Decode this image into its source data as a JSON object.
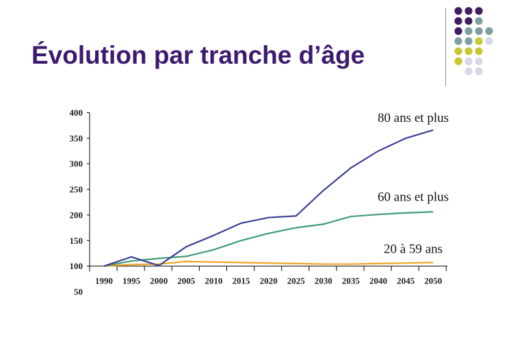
{
  "slide": {
    "title": "Évolution par tranche d’âge"
  },
  "decoration": {
    "dot_colors": {
      "purple": "#3e1e5e",
      "teal": "#7e9ea2",
      "yellow": "#c8c830",
      "lavender": "#d9d6e8"
    },
    "dot_rows": [
      [
        "purple",
        "purple",
        "purple",
        null
      ],
      [
        "purple",
        "purple",
        "teal",
        null
      ],
      [
        "purple",
        "teal",
        "teal",
        "teal"
      ],
      [
        "teal",
        "teal",
        "yellow",
        "lavender"
      ],
      [
        "yellow",
        "yellow",
        "yellow",
        null
      ],
      [
        "yellow",
        "lavender",
        "lavender",
        null
      ],
      [
        null,
        "lavender",
        "lavender",
        null
      ]
    ]
  },
  "chart_data": {
    "type": "line",
    "x": [
      "1990",
      "1995",
      "2000",
      "2005",
      "2010",
      "2015",
      "2020",
      "2025",
      "2030",
      "2035",
      "2040",
      "2045",
      "2050"
    ],
    "ylim": [
      50,
      400
    ],
    "yticks": [
      400,
      350,
      300,
      250,
      200,
      150,
      100,
      50
    ],
    "xlabel": "",
    "ylabel": "",
    "series": [
      {
        "name": "80 ans et plus",
        "color": "#3b3f98",
        "values": [
          100,
          118,
          101,
          138,
          160,
          184,
          195,
          198,
          248,
          292,
          325,
          350,
          366
        ]
      },
      {
        "name": "60 ans et plus",
        "color": "#3f9a75",
        "values": [
          100,
          110,
          115,
          119,
          132,
          150,
          164,
          175,
          182,
          197,
          201,
          204,
          206
        ]
      },
      {
        "name": "20 à 59 ans",
        "color": "#f0a420",
        "values": [
          100,
          103,
          104,
          109,
          108,
          107,
          106,
          105,
          104,
          104,
          105,
          106,
          107
        ]
      }
    ]
  }
}
